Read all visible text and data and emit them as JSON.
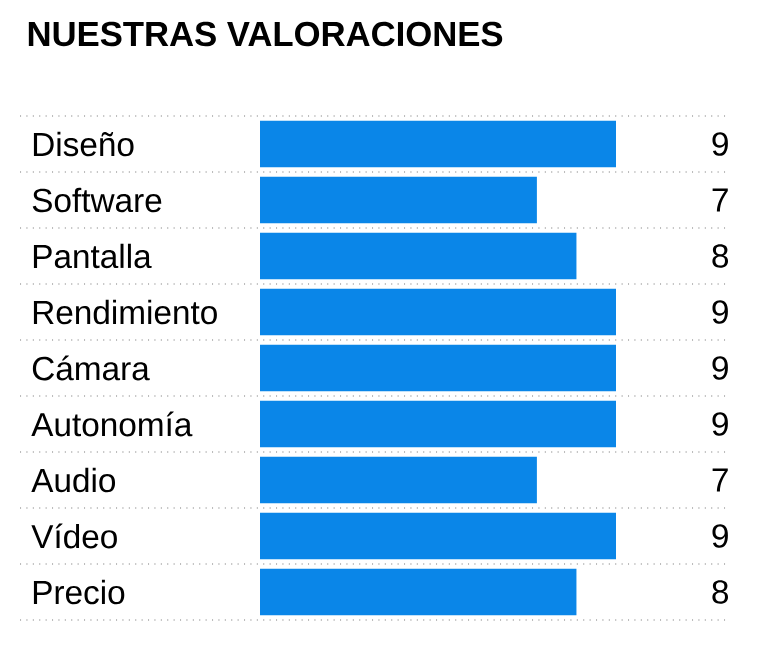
{
  "chart_data": {
    "type": "bar",
    "orientation": "horizontal",
    "title": "NUESTRAS VALORACIONES",
    "categories": [
      "Diseño",
      "Software",
      "Pantalla",
      "Rendimiento",
      "Cámara",
      "Autonomía",
      "Audio",
      "Vídeo",
      "Precio"
    ],
    "values": [
      9,
      7,
      8,
      9,
      9,
      9,
      7,
      9,
      8
    ],
    "color": "#0a86e8",
    "data_labels": true,
    "grid": "y"
  }
}
